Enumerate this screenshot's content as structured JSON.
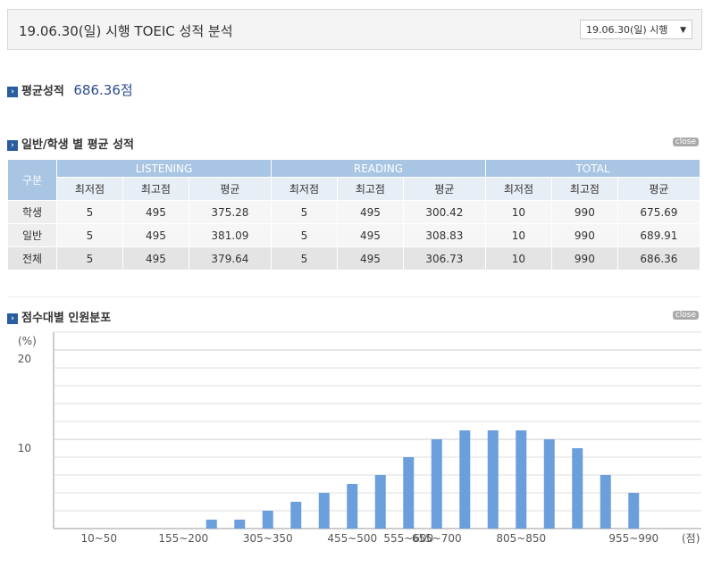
{
  "header": {
    "title": "19.06.30(일) 시행 TOEIC 성적 분석",
    "select": "19.06.30(일) 시행"
  },
  "average": {
    "label": "평균성적",
    "value": "686.36점"
  },
  "section1": {
    "title": "일반/학생 별 평균 성적",
    "close": "close"
  },
  "table": {
    "corner": "구분",
    "groups": [
      "LISTENING",
      "READING",
      "TOTAL"
    ],
    "subheaders": [
      "최저점",
      "최고점",
      "평균",
      "최저점",
      "최고점",
      "평균",
      "최저점",
      "최고점",
      "평균"
    ],
    "rows": [
      [
        "학생",
        "5",
        "495",
        "375.28",
        "5",
        "495",
        "300.42",
        "10",
        "990",
        "675.69"
      ],
      [
        "일반",
        "5",
        "495",
        "381.09",
        "5",
        "495",
        "308.83",
        "10",
        "990",
        "689.91"
      ],
      [
        "전체",
        "5",
        "495",
        "379.64",
        "5",
        "495",
        "306.73",
        "10",
        "990",
        "686.36"
      ]
    ]
  },
  "section2": {
    "title": "점수대별 인원분포",
    "close": "close"
  },
  "chart_data": {
    "type": "bar",
    "y_unit": "(%)",
    "x_unit": "(점)",
    "categories": [
      "10~50",
      null,
      null,
      "155~200",
      null,
      null,
      "305~350",
      null,
      null,
      "455~500",
      null,
      "555~600",
      "655~700",
      null,
      null,
      "805~850",
      null,
      null,
      null,
      "955~990"
    ],
    "values": [
      0,
      0,
      0,
      0,
      1,
      1,
      2,
      3,
      4,
      5,
      6,
      8,
      10,
      11,
      11,
      11,
      10,
      9,
      6,
      4
    ],
    "color": "#6a9fdc",
    "ylim": [
      0,
      22
    ],
    "yticks": [
      10,
      20
    ],
    "grid_step": 2,
    "grid": true
  }
}
